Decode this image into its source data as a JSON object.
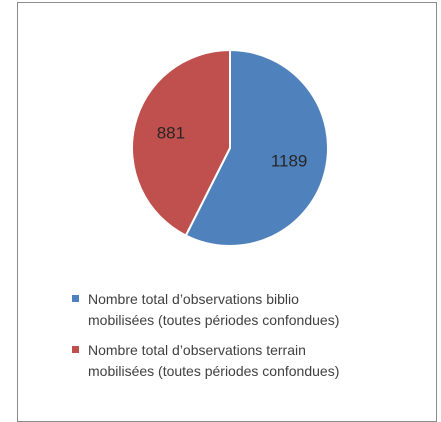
{
  "chart_data": {
    "type": "pie",
    "title": "",
    "categories": [
      "Nombre total d’observations biblio mobilisées (toutes périodes confondues)",
      "Nombre total d’observations terrain mobilisées (toutes périodes confondues)"
    ],
    "values": [
      1189,
      881
    ],
    "data_labels": [
      "1189",
      "881"
    ],
    "colors": [
      "#4f81bd",
      "#c0504d"
    ],
    "legend_position": "bottom",
    "legend": [
      {
        "line1": "Nombre total d’observations biblio",
        "line2": "mobilisées (toutes périodes confondues)",
        "color": "#4f81bd"
      },
      {
        "line1": "Nombre total d’observations terrain",
        "line2": "mobilisées (toutes périodes confondues)",
        "color": "#c0504d"
      }
    ]
  }
}
